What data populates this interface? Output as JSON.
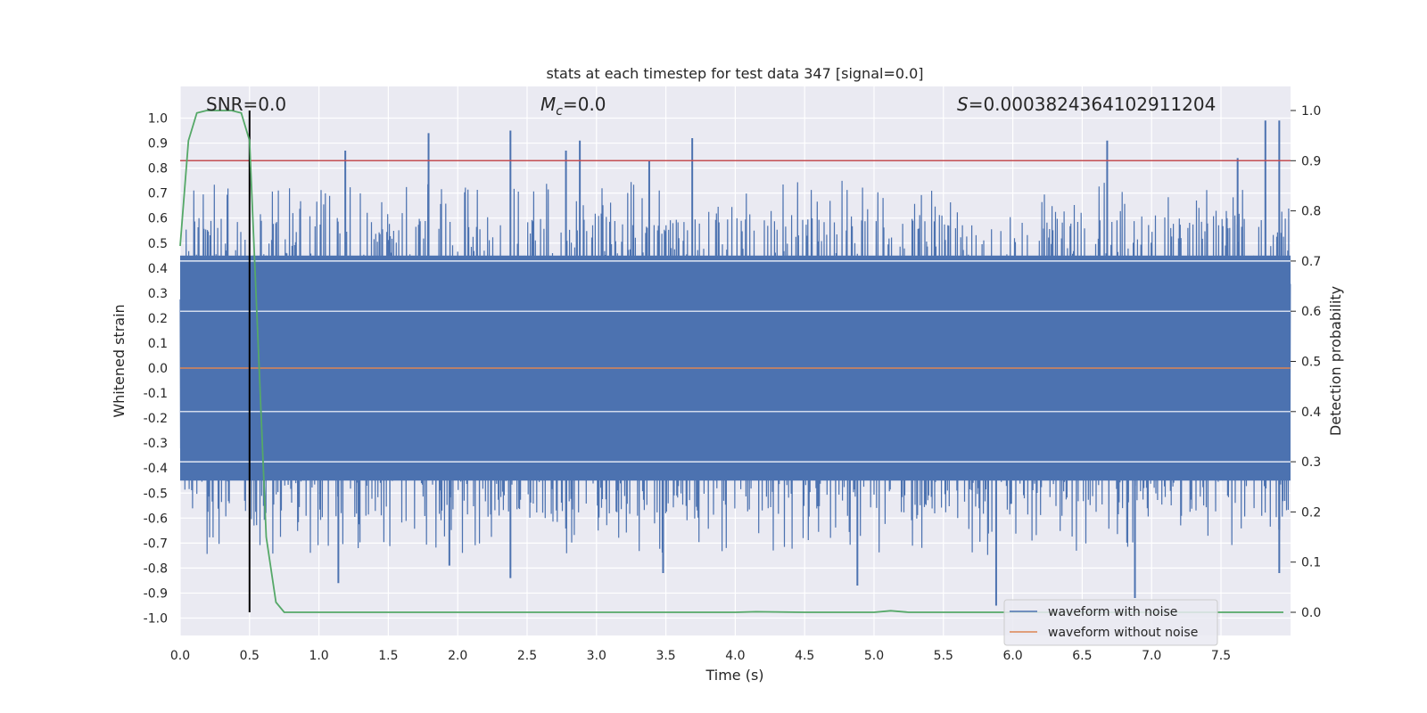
{
  "chart_data": {
    "type": "line",
    "title": "stats at each timestep for test data 347 [signal=0.0]",
    "xlabel": "Time (s)",
    "ylabel_left": "Whitened strain",
    "ylabel_right": "Detection probability",
    "xlim": [
      0.0,
      8.0
    ],
    "ylim_left": [
      -1.05,
      1.05
    ],
    "ylim_right": [
      -0.05,
      1.05
    ],
    "x_ticks": [
      0.0,
      0.5,
      1.0,
      1.5,
      2.0,
      2.5,
      3.0,
      3.5,
      4.0,
      4.5,
      5.0,
      5.5,
      6.0,
      6.5,
      7.0,
      7.5
    ],
    "x_tick_labels": [
      "0.0",
      "0.5",
      "1.0",
      "1.5",
      "2.0",
      "2.5",
      "3.0",
      "3.5",
      "4.0",
      "4.5",
      "5.0",
      "5.5",
      "6.0",
      "6.5",
      "7.0",
      "7.5"
    ],
    "y_left_ticks": [
      1.0,
      0.9,
      0.8,
      0.7,
      0.6,
      0.5,
      0.4,
      0.3,
      0.2,
      0.1,
      0.0,
      -0.1,
      -0.2,
      -0.3,
      -0.4,
      -0.5,
      -0.6,
      -0.7,
      -0.8,
      -0.9,
      -1.0
    ],
    "y_left_tick_labels": [
      "1.0",
      "0.9",
      "0.8",
      "0.7",
      "0.6",
      "0.5",
      "0.4",
      "0.3",
      "0.2",
      "0.1",
      "0.0",
      "-0.1",
      "-0.2",
      "-0.3",
      "-0.4",
      "-0.5",
      "-0.6",
      "-0.7",
      "-0.8",
      "-0.9",
      "-1.0"
    ],
    "y_right_ticks": [
      1.0,
      0.9,
      0.8,
      0.7,
      0.6,
      0.5,
      0.4,
      0.3,
      0.2,
      0.1,
      0.0
    ],
    "y_right_tick_labels": [
      "1.0",
      "0.9",
      "0.8",
      "0.7",
      "0.6",
      "0.5",
      "0.4",
      "0.3",
      "0.2",
      "0.1",
      "0.0"
    ],
    "annotations": {
      "snr": "SNR=0.0",
      "mc_symbol": "M",
      "mc_sub": "c",
      "mc_value": "=0.0",
      "s_symbol": "S",
      "s_value": "=0.0003824364102911204"
    },
    "series": [
      {
        "name": "waveform with noise",
        "color": "#4c72b0",
        "description": "dense noise trace spanning roughly -0.95 to 1.0 over 0–8 s",
        "band": [
          -0.45,
          0.45
        ],
        "peaks": [
          {
            "x": 1.19,
            "y": 0.87
          },
          {
            "x": 1.79,
            "y": 0.94
          },
          {
            "x": 2.38,
            "y": 0.95
          },
          {
            "x": 2.78,
            "y": 0.87
          },
          {
            "x": 2.88,
            "y": 0.91
          },
          {
            "x": 3.69,
            "y": 0.92
          },
          {
            "x": 3.38,
            "y": 0.83
          },
          {
            "x": 6.68,
            "y": 0.91
          },
          {
            "x": 7.62,
            "y": 0.84
          },
          {
            "x": 7.82,
            "y": 0.99
          },
          {
            "x": 7.92,
            "y": 0.99
          }
        ],
        "troughs": [
          {
            "x": 1.14,
            "y": -0.86
          },
          {
            "x": 1.94,
            "y": -0.79
          },
          {
            "x": 2.38,
            "y": -0.84
          },
          {
            "x": 3.48,
            "y": -0.82
          },
          {
            "x": 4.88,
            "y": -0.87
          },
          {
            "x": 5.88,
            "y": -0.95
          },
          {
            "x": 6.88,
            "y": -0.92
          },
          {
            "x": 7.92,
            "y": -0.82
          }
        ]
      },
      {
        "name": "waveform without noise",
        "color": "#dd8452",
        "x": [
          0.0,
          8.0
        ],
        "y": [
          0.0,
          0.0
        ]
      },
      {
        "name": "detection probability",
        "color": "#55a868",
        "axis": "right",
        "x": [
          0.0,
          0.06,
          0.12,
          0.19,
          0.25,
          0.31,
          0.37,
          0.44,
          0.5,
          0.56,
          0.62,
          0.69,
          0.75,
          0.81,
          1.0,
          2.0,
          3.0,
          4.0,
          4.15,
          4.5,
          5.0,
          5.12,
          5.25,
          6.0,
          7.0,
          7.95
        ],
        "y": [
          0.73,
          0.94,
          0.995,
          1.0,
          1.0,
          1.0,
          1.0,
          0.995,
          0.94,
          0.55,
          0.15,
          0.02,
          0.0,
          0.0,
          0.0,
          0.0,
          0.0,
          0.0,
          0.001,
          0.0,
          0.0,
          0.003,
          0.0,
          0.0,
          0.0,
          0.0
        ]
      }
    ],
    "reference_lines": [
      {
        "name": "threshold",
        "type": "horizontal",
        "axis": "right",
        "value": 0.9,
        "color": "#c44e52"
      },
      {
        "name": "marker",
        "type": "vertical",
        "value": 0.5,
        "color": "#000000",
        "y_from_right": 0.0,
        "y_to_right": 1.0
      }
    ],
    "legend": {
      "position": "lower-right",
      "entries": [
        {
          "label": "waveform with noise",
          "color": "#4c72b0"
        },
        {
          "label": "waveform without noise",
          "color": "#dd8452"
        }
      ]
    },
    "grid": true,
    "background_color": "#eaeaf2"
  }
}
